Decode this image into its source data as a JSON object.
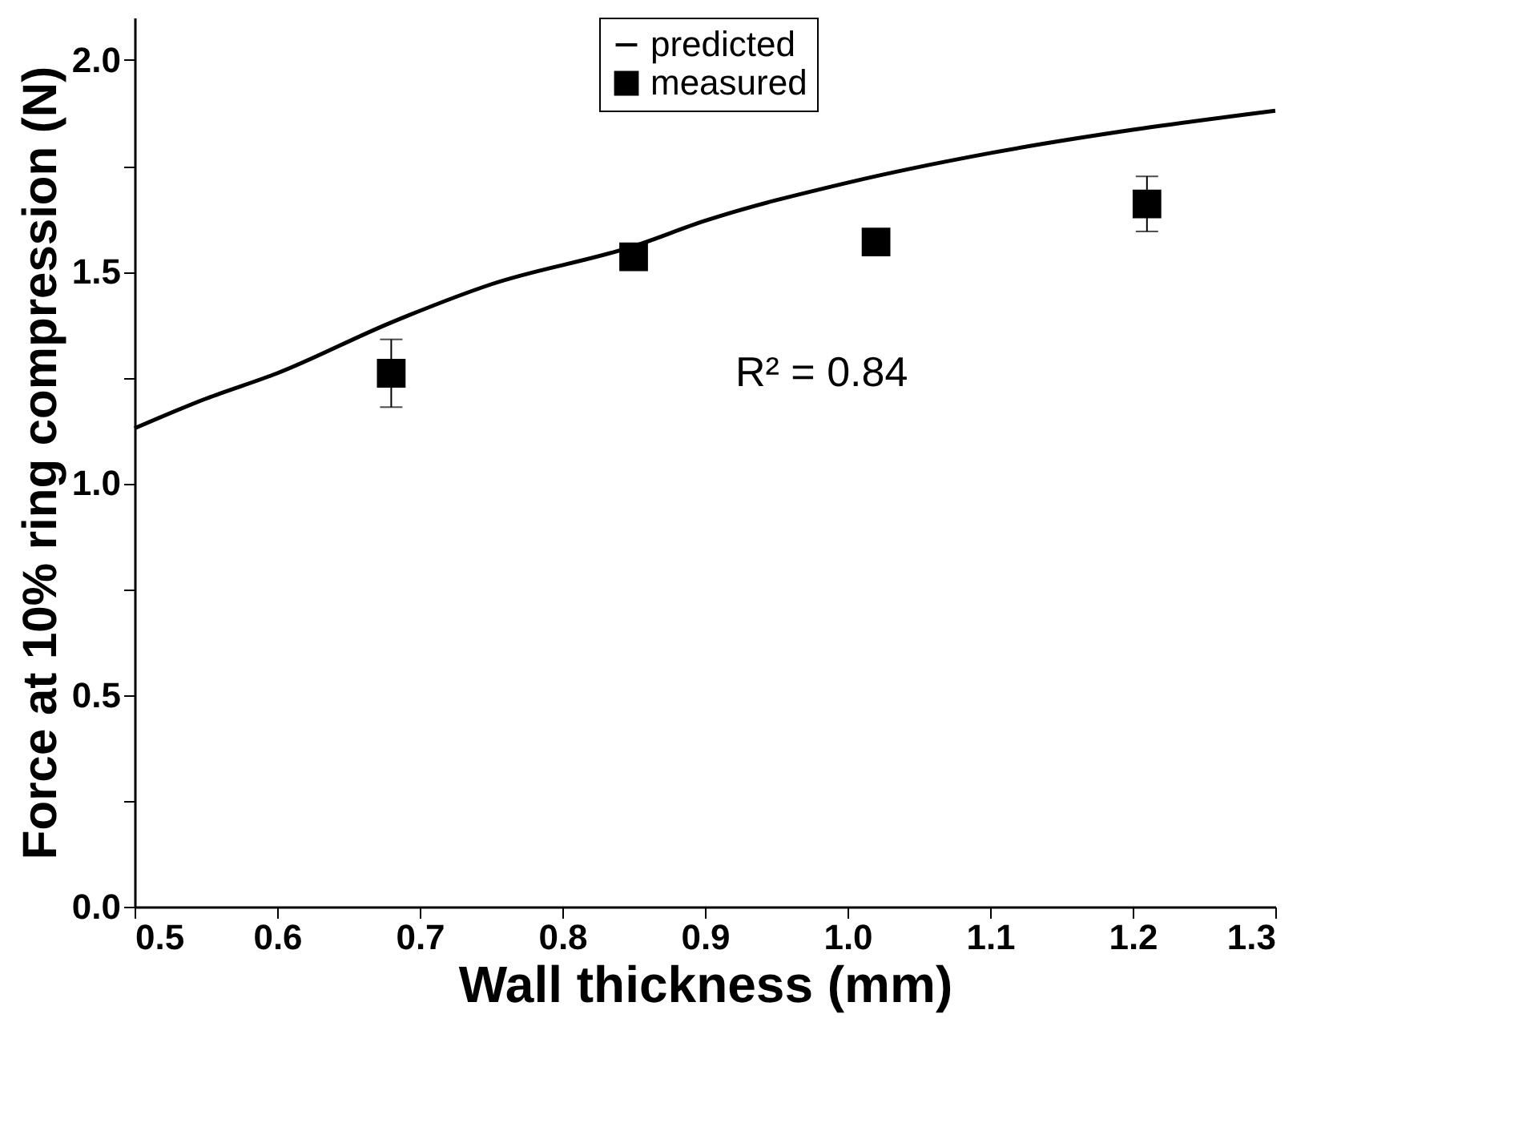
{
  "chart_data": {
    "type": "scatter",
    "xlabel": "Wall thickness (mm)",
    "ylabel": "Force at 10% ring compression (N)",
    "xlim": [
      0.5,
      1.3
    ],
    "xticks": [
      0.5,
      0.6,
      0.7,
      0.8,
      0.9,
      {
        "value": 1,
        "label": "1.0"
      },
      1.1,
      1.2,
      1.3
    ],
    "ylim": [
      0,
      2.1
    ],
    "yticks": [
      {
        "value": 0,
        "label": "0.0"
      },
      {
        "value": 0.25,
        "label": null
      },
      0.5,
      {
        "value": 0.75,
        "label": null
      },
      {
        "value": 1,
        "label": "1.0"
      },
      {
        "value": 1.25,
        "label": null
      },
      1.5,
      {
        "value": 1.75,
        "label": null
      },
      {
        "value": 2,
        "label": "2.0"
      }
    ],
    "series": [
      {
        "name": "predicted",
        "type": "line",
        "color": "#000000",
        "line_style": "solid",
        "x": [
          0.5,
          0.55,
          0.6,
          0.68,
          0.75,
          0.85,
          0.9,
          1.0,
          1.1,
          1.2,
          1.3
        ],
        "values": [
          1.13,
          1.2,
          1.26,
          1.38,
          1.47,
          1.56,
          1.62,
          1.71,
          1.78,
          1.835,
          1.88
        ]
      },
      {
        "name": "measured",
        "marker": "square",
        "color": "#000000",
        "x": [
          0.68,
          0.85,
          1.02,
          1.21
        ],
        "values": [
          1.26,
          1.535,
          1.57,
          1.66
        ],
        "errors": [
          0.08,
          null,
          null,
          0.065
        ]
      }
    ],
    "annotations": [
      "R² = 0.84"
    ],
    "legend": "top",
    "grid": false
  }
}
